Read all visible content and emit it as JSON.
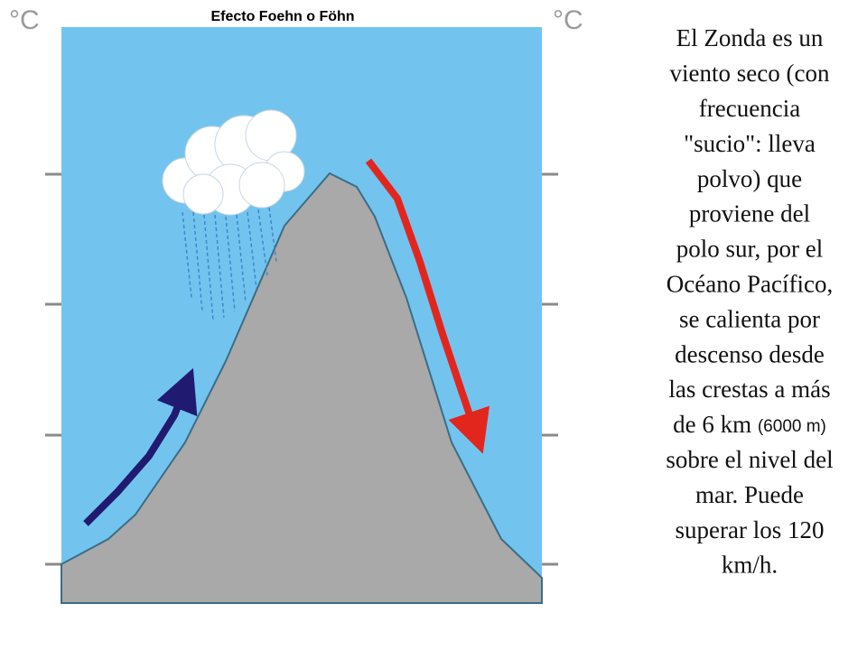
{
  "title": "Efecto Foehn o Föhn",
  "left_unit": "°C",
  "right_unit": "°C",
  "paragraph": {
    "lines_before": [
      "El Zonda es un",
      "viento seco (con",
      "frecuencia",
      "\"sucio\": lleva",
      "polvo) que",
      "proviene del",
      "polo sur, por el",
      "Océano Pacífico,",
      "se calienta por",
      "descenso desde",
      "las crestas a más"
    ],
    "measure_line": {
      "text": "de 6 km",
      "note": "(6000 m)"
    },
    "lines_after": [
      "sobre el nivel del",
      "mar. Puede",
      "superar los 120",
      "km/h."
    ]
  }
}
